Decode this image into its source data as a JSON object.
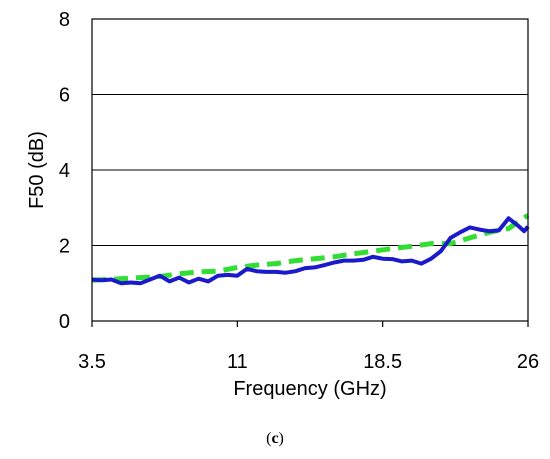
{
  "chart_data": {
    "type": "line",
    "xlabel": "Frequency (GHz)",
    "ylabel": "F50 (dB)",
    "panel_label": "(c)",
    "panel_label_letter": "c",
    "xlim": [
      3.5,
      26
    ],
    "ylim": [
      0,
      8
    ],
    "x_ticks": [
      3.5,
      11,
      18.5,
      26
    ],
    "x_tick_labels": [
      "3.5",
      "11",
      "18.5",
      "26"
    ],
    "y_ticks": [
      0,
      2,
      4,
      6,
      8
    ],
    "y_tick_labels": [
      "0",
      "2",
      "4",
      "6",
      "8"
    ],
    "grid": "horizontal",
    "series": [
      {
        "style": "solid",
        "color": "#1a1acc",
        "points": [
          [
            3.5,
            1.1
          ],
          [
            4.0,
            1.08
          ],
          [
            4.5,
            1.1
          ],
          [
            5.0,
            1.0
          ],
          [
            5.5,
            1.02
          ],
          [
            6.0,
            1.0
          ],
          [
            6.5,
            1.1
          ],
          [
            7.0,
            1.2
          ],
          [
            7.5,
            1.05
          ],
          [
            8.0,
            1.15
          ],
          [
            8.5,
            1.02
          ],
          [
            9.0,
            1.12
          ],
          [
            9.5,
            1.05
          ],
          [
            10.0,
            1.2
          ],
          [
            10.5,
            1.22
          ],
          [
            11.0,
            1.2
          ],
          [
            11.5,
            1.38
          ],
          [
            12.0,
            1.32
          ],
          [
            12.5,
            1.3
          ],
          [
            13.0,
            1.3
          ],
          [
            13.5,
            1.28
          ],
          [
            14.0,
            1.32
          ],
          [
            14.5,
            1.4
          ],
          [
            15.0,
            1.42
          ],
          [
            15.5,
            1.48
          ],
          [
            16.0,
            1.55
          ],
          [
            16.5,
            1.6
          ],
          [
            17.0,
            1.6
          ],
          [
            17.5,
            1.62
          ],
          [
            18.0,
            1.7
          ],
          [
            18.5,
            1.65
          ],
          [
            19.0,
            1.64
          ],
          [
            19.5,
            1.58
          ],
          [
            20.0,
            1.6
          ],
          [
            20.5,
            1.52
          ],
          [
            21.0,
            1.65
          ],
          [
            21.5,
            1.85
          ],
          [
            22.0,
            2.2
          ],
          [
            22.5,
            2.35
          ],
          [
            23.0,
            2.48
          ],
          [
            23.5,
            2.42
          ],
          [
            24.0,
            2.38
          ],
          [
            24.5,
            2.4
          ],
          [
            25.0,
            2.72
          ],
          [
            25.5,
            2.52
          ],
          [
            25.8,
            2.38
          ],
          [
            26.0,
            2.5
          ]
        ]
      },
      {
        "style": "dashed",
        "color": "#33dd33",
        "points": [
          [
            3.5,
            1.08
          ],
          [
            5.0,
            1.12
          ],
          [
            6.0,
            1.15
          ],
          [
            7.0,
            1.18
          ],
          [
            8.0,
            1.25
          ],
          [
            9.0,
            1.3
          ],
          [
            10.0,
            1.32
          ],
          [
            11.0,
            1.42
          ],
          [
            12.0,
            1.48
          ],
          [
            13.0,
            1.52
          ],
          [
            14.0,
            1.6
          ],
          [
            15.0,
            1.65
          ],
          [
            16.0,
            1.7
          ],
          [
            17.0,
            1.78
          ],
          [
            18.0,
            1.85
          ],
          [
            19.0,
            1.92
          ],
          [
            20.0,
            1.98
          ],
          [
            21.0,
            2.05
          ],
          [
            22.0,
            2.05
          ],
          [
            23.0,
            2.2
          ],
          [
            24.0,
            2.35
          ],
          [
            25.0,
            2.45
          ],
          [
            26.0,
            2.8
          ]
        ]
      }
    ]
  }
}
